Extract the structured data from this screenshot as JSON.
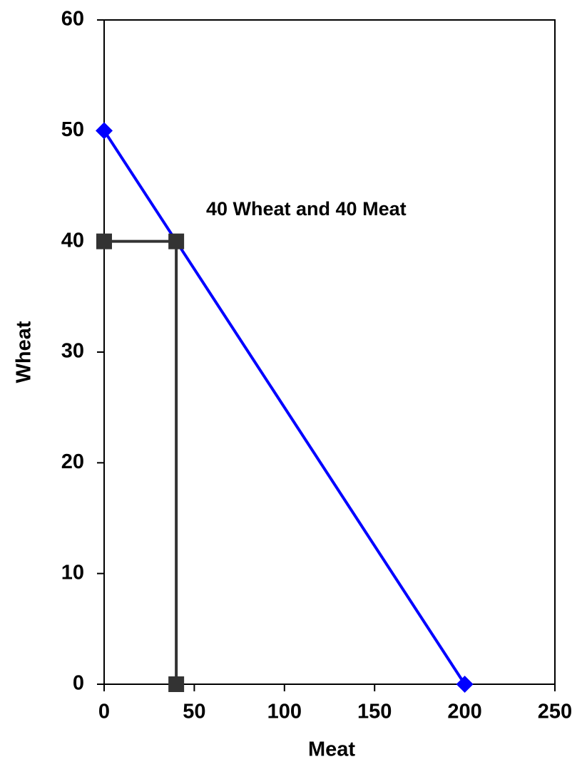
{
  "chart_data": {
    "type": "line",
    "xlabel": "Meat",
    "ylabel": "Wheat",
    "annotation": "40 Wheat and 40 Meat",
    "series": [
      {
        "color": "#0000ff",
        "marker": "diamond",
        "x": [
          0,
          200
        ],
        "values": [
          50,
          0
        ]
      },
      {
        "color": "#333333",
        "marker": "square",
        "x": [
          0,
          40,
          40
        ],
        "values": [
          40,
          40,
          0
        ]
      }
    ],
    "xlim": [
      0,
      250
    ],
    "xticks": [
      0,
      50,
      100,
      150,
      200,
      250
    ],
    "ylim": [
      0,
      60
    ],
    "yticks": [
      0,
      10,
      20,
      30,
      40,
      50,
      60
    ],
    "grid": false
  }
}
